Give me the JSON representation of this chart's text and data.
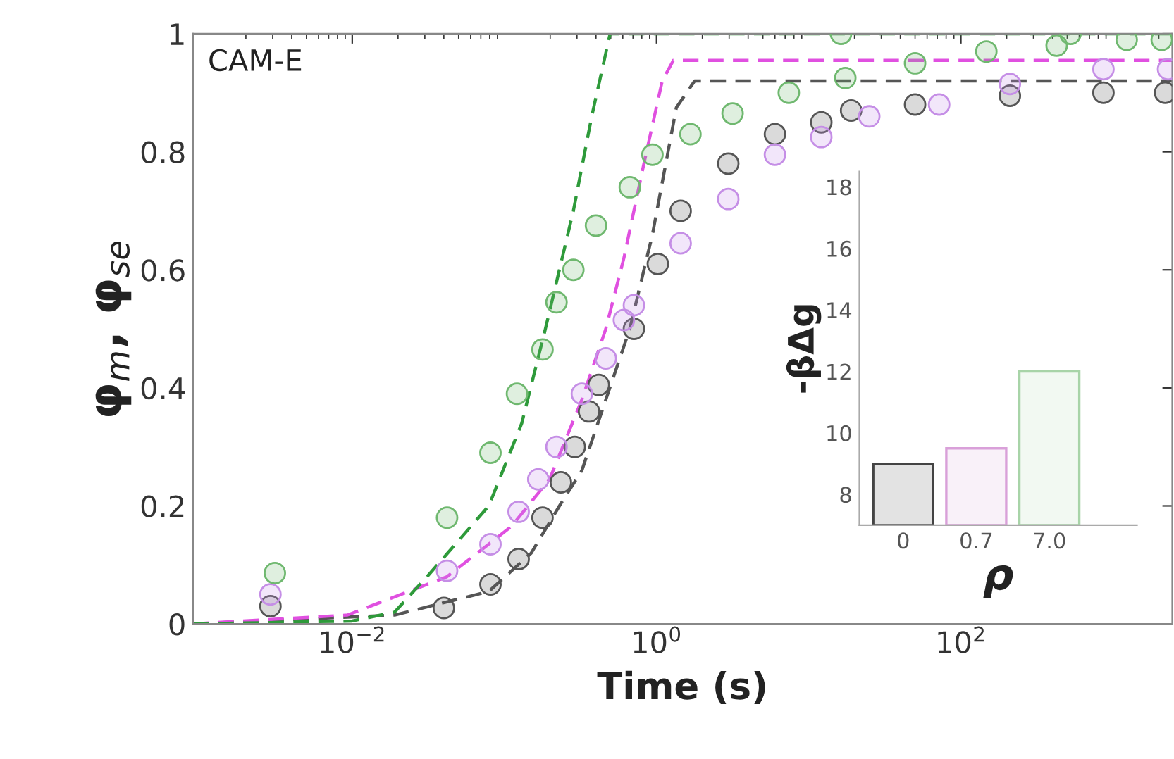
{
  "chart_data": [
    {
      "type": "scatter",
      "xlabel": "Time (s)",
      "ylabel": "φ$_{m}$, φ$_{se}$",
      "annotations": [
        "CAM-E"
      ],
      "log": "x",
      "xlim": [
        0.0009,
        2450
      ],
      "xticks": [
        {
          "value": 0.01,
          "label": "10$^{−2}$"
        },
        {
          "value": 1,
          "label": "10$^{0}$"
        },
        {
          "value": 100,
          "label": "10$^{2}$"
        }
      ],
      "ylim": [
        0,
        1
      ],
      "yticks": [
        0,
        0.2,
        0.4,
        0.6,
        0.8,
        1
      ],
      "grid": false,
      "legend": false,
      "series": [
        {
          "type": "scatter",
          "marker": "circle",
          "color": "#555555",
          "x": [
            0.0029,
            0.04,
            0.081,
            0.124,
            0.178,
            0.235,
            0.29,
            0.36,
            0.417,
            0.71,
            1.02,
            1.44,
            2.96,
            6.0,
            12.1,
            19,
            50,
            210,
            865,
            2200
          ],
          "values": [
            0.03,
            0.027,
            0.067,
            0.11,
            0.18,
            0.24,
            0.3,
            0.36,
            0.405,
            0.5,
            0.61,
            0.7,
            0.78,
            0.83,
            0.85,
            0.87,
            0.88,
            0.895,
            0.9,
            0.9
          ]
        },
        {
          "type": "scatter",
          "marker": "circle",
          "color": "#c58ee6",
          "x": [
            0.0029,
            0.042,
            0.081,
            0.124,
            0.167,
            0.22,
            0.323,
            0.464,
            0.61,
            0.71,
            1.44,
            2.96,
            6.0,
            12.1,
            25,
            72,
            210,
            865,
            2300
          ],
          "values": [
            0.05,
            0.09,
            0.135,
            0.19,
            0.245,
            0.3,
            0.39,
            0.45,
            0.515,
            0.54,
            0.645,
            0.72,
            0.795,
            0.825,
            0.86,
            0.88,
            0.915,
            0.94,
            0.94
          ]
        },
        {
          "type": "scatter",
          "marker": "circle",
          "color": "#6fb86f",
          "x": [
            0.0031,
            0.042,
            0.081,
            0.121,
            0.178,
            0.22,
            0.284,
            0.4,
            0.667,
            0.94,
            1.67,
            3.16,
            7.4,
            16.3,
            17.4,
            50,
            147,
            426,
            525,
            1230,
            2090
          ],
          "values": [
            0.086,
            0.18,
            0.29,
            0.39,
            0.465,
            0.545,
            0.6,
            0.675,
            0.74,
            0.795,
            0.83,
            0.865,
            0.9,
            1.0,
            0.925,
            0.95,
            0.97,
            0.98,
            1.0,
            0.99,
            0.99
          ]
        },
        {
          "type": "line",
          "line_style": "dashed",
          "color": "#555555",
          "x": [
            0.0009,
            0.019,
            0.079,
            0.15,
            0.23,
            0.323,
            0.464,
            0.667,
            0.94,
            1.35,
            1.78,
            2450
          ],
          "values": [
            0,
            0.015,
            0.055,
            0.12,
            0.2,
            0.26,
            0.38,
            0.5,
            0.66,
            0.875,
            0.92,
            0.92
          ]
        },
        {
          "type": "line",
          "line_style": "dashed",
          "color": "#e050e0",
          "x": [
            0.0009,
            0.0093,
            0.042,
            0.111,
            0.198,
            0.323,
            0.464,
            0.61,
            0.826,
            1.09,
            1.29,
            2450
          ],
          "values": [
            0,
            0.015,
            0.08,
            0.165,
            0.245,
            0.38,
            0.5,
            0.62,
            0.78,
            0.92,
            0.955,
            0.955
          ]
        },
        {
          "type": "line",
          "line_style": "dashed",
          "color": "#2e9a3a",
          "x": [
            0.0009,
            0.01,
            0.019,
            0.031,
            0.079,
            0.13,
            0.186,
            0.284,
            0.375,
            0.495,
            2450
          ],
          "values": [
            0,
            0.005,
            0.02,
            0.08,
            0.2,
            0.34,
            0.5,
            0.7,
            0.86,
            1.0,
            1.0
          ]
        }
      ]
    },
    {
      "type": "bar",
      "xlabel": "ρ",
      "ylabel": "-βΔg",
      "categories": [
        "0",
        "0.7",
        "7.0"
      ],
      "values": [
        9.0,
        9.5,
        12.0
      ],
      "colors": [
        "#444444",
        "#d9a0d9",
        "#a8d4a8"
      ],
      "ylim": [
        7,
        18.5
      ],
      "yticks": [
        8,
        10,
        12,
        14,
        16,
        18
      ],
      "grid": false,
      "legend": false
    }
  ]
}
